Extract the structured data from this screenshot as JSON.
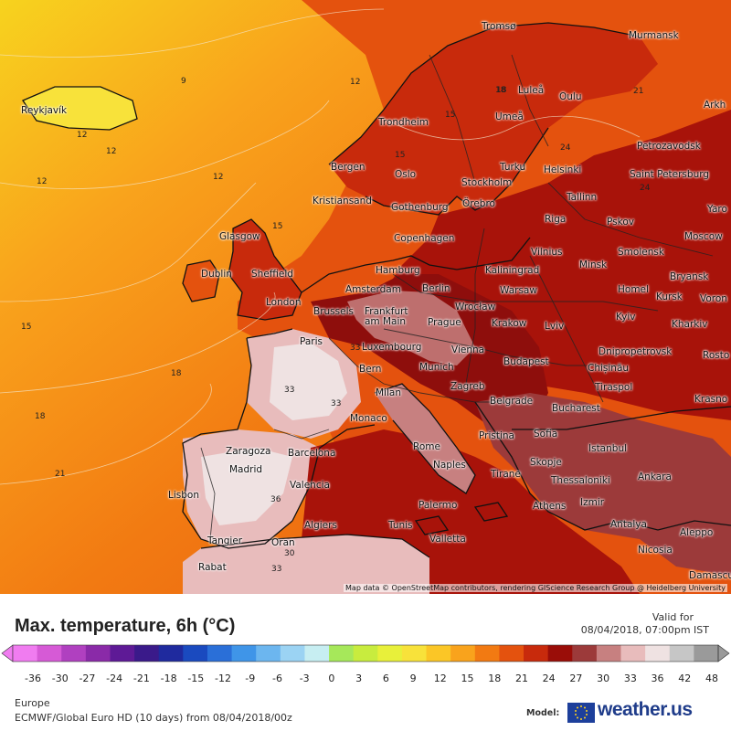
{
  "title": "Max. temperature, 6h (°C)",
  "valid": {
    "label": "Valid for",
    "value": "08/04/2018, 07:00pm IST"
  },
  "region": "Europe",
  "model_run": "ECMWF/Global Euro HD (10 days) from 08/04/2018/00z",
  "model_label": "Model:",
  "brand": "weather.us",
  "attribution": "Map data © OpenStreetMap contributors, rendering GIScience Research Group @ Heidelberg University",
  "scale": {
    "ticks": [
      "-36",
      "-30",
      "-27",
      "-24",
      "-21",
      "-18",
      "-15",
      "-12",
      "-9",
      "-6",
      "-3",
      "0",
      "3",
      "6",
      "9",
      "12",
      "15",
      "18",
      "21",
      "24",
      "27",
      "30",
      "33",
      "36",
      "42",
      "48"
    ],
    "colors": [
      "#f07cf0",
      "#d65ad6",
      "#b040c0",
      "#8a2aa8",
      "#5e1a96",
      "#3a1a8a",
      "#1f2a9e",
      "#1a4abf",
      "#2a6fd8",
      "#3f95e8",
      "#6cb6ef",
      "#9bd3f3",
      "#c7eef2",
      "#a6e85a",
      "#c8ec3e",
      "#e8f03a",
      "#f8e23a",
      "#fbc626",
      "#f9a31c",
      "#f27a12",
      "#e4520e",
      "#c82a0c",
      "#9a0d08",
      "#9c3a3a",
      "#c78080",
      "#e8bcbc",
      "#efe2e2",
      "#c6c6c6",
      "#9a9a9a"
    ]
  },
  "cities": [
    {
      "name": "Tromsø"
    },
    {
      "name": "Murmansk"
    },
    {
      "name": "Reykjavík"
    },
    {
      "name": "Luleå"
    },
    {
      "name": "Oulu"
    },
    {
      "name": "Arkh"
    },
    {
      "name": "Trondheim"
    },
    {
      "name": "Umeå"
    },
    {
      "name": "Petrozavodsk"
    },
    {
      "name": "Bergen"
    },
    {
      "name": "Oslo"
    },
    {
      "name": "Turku"
    },
    {
      "name": "Helsinki"
    },
    {
      "name": "Saint Petersburg"
    },
    {
      "name": "Stockholm"
    },
    {
      "name": "Kristiansand"
    },
    {
      "name": "Gothenburg"
    },
    {
      "name": "Örebro"
    },
    {
      "name": "Tallinn"
    },
    {
      "name": "Riga"
    },
    {
      "name": "Pskov"
    },
    {
      "name": "Yaro"
    },
    {
      "name": "Glasgow"
    },
    {
      "name": "Copenhagen"
    },
    {
      "name": "Vilnius"
    },
    {
      "name": "Smolensk"
    },
    {
      "name": "Moscow"
    },
    {
      "name": "Dublin"
    },
    {
      "name": "Sheffield"
    },
    {
      "name": "Hamburg"
    },
    {
      "name": "Kaliningrad"
    },
    {
      "name": "Minsk"
    },
    {
      "name": "Bryansk"
    },
    {
      "name": "London"
    },
    {
      "name": "Amsterdam"
    },
    {
      "name": "Berlin"
    },
    {
      "name": "Warsaw"
    },
    {
      "name": "Homel"
    },
    {
      "name": "Kursk"
    },
    {
      "name": "Voron"
    },
    {
      "name": "Brussels"
    },
    {
      "name": "Frankfurt am Main"
    },
    {
      "name": "Wrocław"
    },
    {
      "name": "Prague"
    },
    {
      "name": "Krakow"
    },
    {
      "name": "Lviv"
    },
    {
      "name": "Kyiv"
    },
    {
      "name": "Kharkiv"
    },
    {
      "name": "Paris"
    },
    {
      "name": "Luxembourg"
    },
    {
      "name": "Vienna"
    },
    {
      "name": "Dnipropetrovsk"
    },
    {
      "name": "Rosto"
    },
    {
      "name": "Bern"
    },
    {
      "name": "Munich"
    },
    {
      "name": "Budapest"
    },
    {
      "name": "Chișinău"
    },
    {
      "name": "Milan"
    },
    {
      "name": "Zagreb"
    },
    {
      "name": "Tiraspol"
    },
    {
      "name": "Belgrade"
    },
    {
      "name": "Bucharest"
    },
    {
      "name": "Krasno"
    },
    {
      "name": "Monaco"
    },
    {
      "name": "Pristina"
    },
    {
      "name": "Sofia"
    },
    {
      "name": "Zaragoza"
    },
    {
      "name": "Barcelona"
    },
    {
      "name": "Rome"
    },
    {
      "name": "Istanbul"
    },
    {
      "name": "Madrid"
    },
    {
      "name": "Naples"
    },
    {
      "name": "Tirane"
    },
    {
      "name": "Skopje"
    },
    {
      "name": "Ankara"
    },
    {
      "name": "Valencia"
    },
    {
      "name": "Thessaloniki"
    },
    {
      "name": "Lisbon"
    },
    {
      "name": "Palermo"
    },
    {
      "name": "Athens"
    },
    {
      "name": "Izmir"
    },
    {
      "name": "Algiers"
    },
    {
      "name": "Tunis"
    },
    {
      "name": "Antalya"
    },
    {
      "name": "Aleppo"
    },
    {
      "name": "Tangier"
    },
    {
      "name": "Oran"
    },
    {
      "name": "Valletta"
    },
    {
      "name": "Nicosia"
    },
    {
      "name": "Rabat"
    },
    {
      "name": "Damascus"
    }
  ],
  "isotherm_labels": [
    "9",
    "12",
    "12",
    "12",
    "12",
    "12",
    "15",
    "15",
    "15",
    "18",
    "18",
    "18",
    "21",
    "21",
    "24",
    "24",
    "30",
    "33",
    "33",
    "33",
    "36",
    "33",
    "15",
    "18"
  ]
}
